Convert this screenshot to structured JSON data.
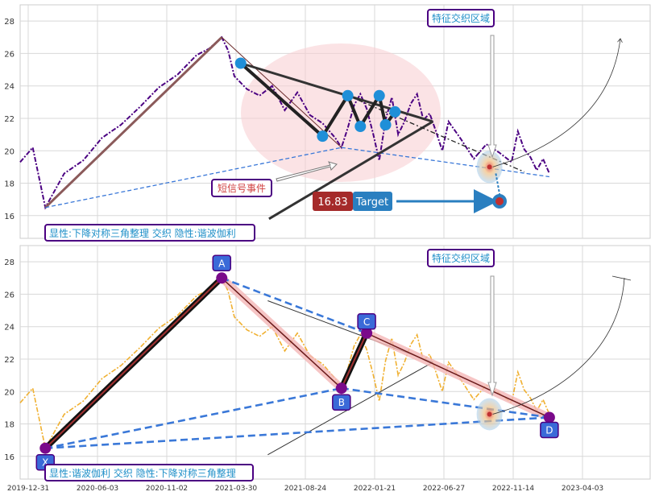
{
  "colors": {
    "top_series": "#4b0082",
    "bottom_series": "#f0b030",
    "triangle": "#333333",
    "harmonic_fill": "#f4b6b6",
    "box_border": "#4b0082",
    "box_text": "#1f8fc8",
    "event_text": "#d04040",
    "target_value_bg": "#a52a2a",
    "target_label_bg": "#2a7fc0",
    "dashed_blue": "#3a78d8",
    "node_blue": "#1f8fd8"
  },
  "chart_data": [
    {
      "type": "line",
      "panel": "top",
      "ylim": [
        14.6,
        29.0
      ],
      "yticks": [
        16,
        18,
        20,
        22,
        24,
        26,
        28
      ],
      "grid": true,
      "series": [
        {
          "values": [
            [
              0.0,
              19.3
            ],
            [
              0.02,
              20.2
            ],
            [
              0.04,
              16.5
            ],
            [
              0.07,
              18.6
            ],
            [
              0.1,
              19.4
            ],
            [
              0.13,
              20.8
            ],
            [
              0.16,
              21.6
            ],
            [
              0.19,
              22.7
            ],
            [
              0.22,
              23.9
            ],
            [
              0.25,
              24.7
            ],
            [
              0.28,
              25.9
            ],
            [
              0.3,
              26.3
            ],
            [
              0.32,
              27.0
            ],
            [
              0.33,
              26.2
            ],
            [
              0.34,
              24.6
            ],
            [
              0.36,
              23.8
            ],
            [
              0.38,
              23.4
            ],
            [
              0.4,
              24.0
            ],
            [
              0.42,
              22.5
            ],
            [
              0.44,
              23.6
            ],
            [
              0.46,
              22.2
            ],
            [
              0.48,
              21.7
            ],
            [
              0.5,
              20.8
            ],
            [
              0.51,
              20.2
            ],
            [
              0.52,
              21.4
            ],
            [
              0.53,
              22.8
            ],
            [
              0.54,
              23.5
            ],
            [
              0.55,
              22.6
            ],
            [
              0.56,
              21.1
            ],
            [
              0.57,
              19.4
            ],
            [
              0.58,
              21.9
            ],
            [
              0.59,
              23.3
            ],
            [
              0.6,
              21.0
            ],
            [
              0.61,
              21.8
            ],
            [
              0.62,
              22.9
            ],
            [
              0.63,
              23.5
            ],
            [
              0.64,
              21.9
            ],
            [
              0.65,
              22.3
            ],
            [
              0.66,
              21.2
            ],
            [
              0.67,
              20.0
            ],
            [
              0.68,
              21.8
            ],
            [
              0.7,
              20.7
            ],
            [
              0.72,
              19.5
            ],
            [
              0.74,
              20.4
            ],
            [
              0.76,
              19.9
            ],
            [
              0.78,
              19.3
            ],
            [
              0.79,
              21.2
            ],
            [
              0.8,
              20.1
            ],
            [
              0.81,
              19.6
            ],
            [
              0.82,
              18.8
            ],
            [
              0.83,
              19.5
            ],
            [
              0.84,
              18.6
            ]
          ]
        }
      ],
      "triangle_nodes": [
        [
          0.35,
          25.4
        ],
        [
          0.48,
          20.9
        ],
        [
          0.52,
          23.4
        ],
        [
          0.54,
          21.5
        ],
        [
          0.57,
          23.4
        ],
        [
          0.58,
          21.6
        ],
        [
          0.595,
          22.4
        ]
      ],
      "target_value": "16.83",
      "target_label": "Target"
    },
    {
      "type": "line",
      "panel": "bottom",
      "ylim": [
        14.6,
        29.0
      ],
      "yticks": [
        16,
        18,
        20,
        22,
        24,
        26,
        28
      ],
      "grid": true,
      "series": [
        {
          "values": [
            [
              0.0,
              19.3
            ],
            [
              0.02,
              20.2
            ],
            [
              0.04,
              16.5
            ],
            [
              0.07,
              18.6
            ],
            [
              0.1,
              19.4
            ],
            [
              0.13,
              20.8
            ],
            [
              0.16,
              21.6
            ],
            [
              0.19,
              22.7
            ],
            [
              0.22,
              23.9
            ],
            [
              0.25,
              24.7
            ],
            [
              0.28,
              25.9
            ],
            [
              0.3,
              26.3
            ],
            [
              0.32,
              27.0
            ],
            [
              0.33,
              26.2
            ],
            [
              0.34,
              24.6
            ],
            [
              0.36,
              23.8
            ],
            [
              0.38,
              23.4
            ],
            [
              0.4,
              24.0
            ],
            [
              0.42,
              22.5
            ],
            [
              0.44,
              23.6
            ],
            [
              0.46,
              22.2
            ],
            [
              0.48,
              21.7
            ],
            [
              0.5,
              20.8
            ],
            [
              0.51,
              20.2
            ],
            [
              0.52,
              21.4
            ],
            [
              0.53,
              22.8
            ],
            [
              0.54,
              23.5
            ],
            [
              0.55,
              22.6
            ],
            [
              0.56,
              21.1
            ],
            [
              0.57,
              19.4
            ],
            [
              0.58,
              21.9
            ],
            [
              0.59,
              23.3
            ],
            [
              0.6,
              21.0
            ],
            [
              0.61,
              21.8
            ],
            [
              0.62,
              22.9
            ],
            [
              0.63,
              23.5
            ],
            [
              0.64,
              21.9
            ],
            [
              0.65,
              22.3
            ],
            [
              0.66,
              21.2
            ],
            [
              0.67,
              20.0
            ],
            [
              0.68,
              21.8
            ],
            [
              0.7,
              20.7
            ],
            [
              0.72,
              19.5
            ],
            [
              0.74,
              20.4
            ],
            [
              0.76,
              19.9
            ],
            [
              0.78,
              19.3
            ],
            [
              0.79,
              21.2
            ],
            [
              0.8,
              20.1
            ],
            [
              0.81,
              19.6
            ],
            [
              0.82,
              18.8
            ],
            [
              0.83,
              19.5
            ],
            [
              0.84,
              18.6
            ]
          ]
        }
      ],
      "harmonic_points": [
        {
          "label": "X",
          "x": 0.04,
          "y": 16.5
        },
        {
          "label": "A",
          "x": 0.32,
          "y": 27.0
        },
        {
          "label": "B",
          "x": 0.51,
          "y": 20.2
        },
        {
          "label": "C",
          "x": 0.55,
          "y": 23.6
        },
        {
          "label": "D",
          "x": 0.84,
          "y": 18.4
        }
      ]
    }
  ],
  "x_tick_labels": [
    "2019-12-31",
    "2020-06-03",
    "2020-11-02",
    "2021-03-30",
    "2021-08-24",
    "2022-01-21",
    "2022-06-27",
    "2022-11-14",
    "2023-04-03"
  ],
  "annotations": {
    "top_feature_zone": "特征交织区域",
    "bottom_feature_zone": "特征交织区域",
    "short_signal": "短信号事件",
    "top_caption": "显性:下降对称三角整理 交织 隐性:谐波伽利",
    "bottom_caption": "显性:谐波伽利 交织 隐性:下降对称三角整理"
  }
}
